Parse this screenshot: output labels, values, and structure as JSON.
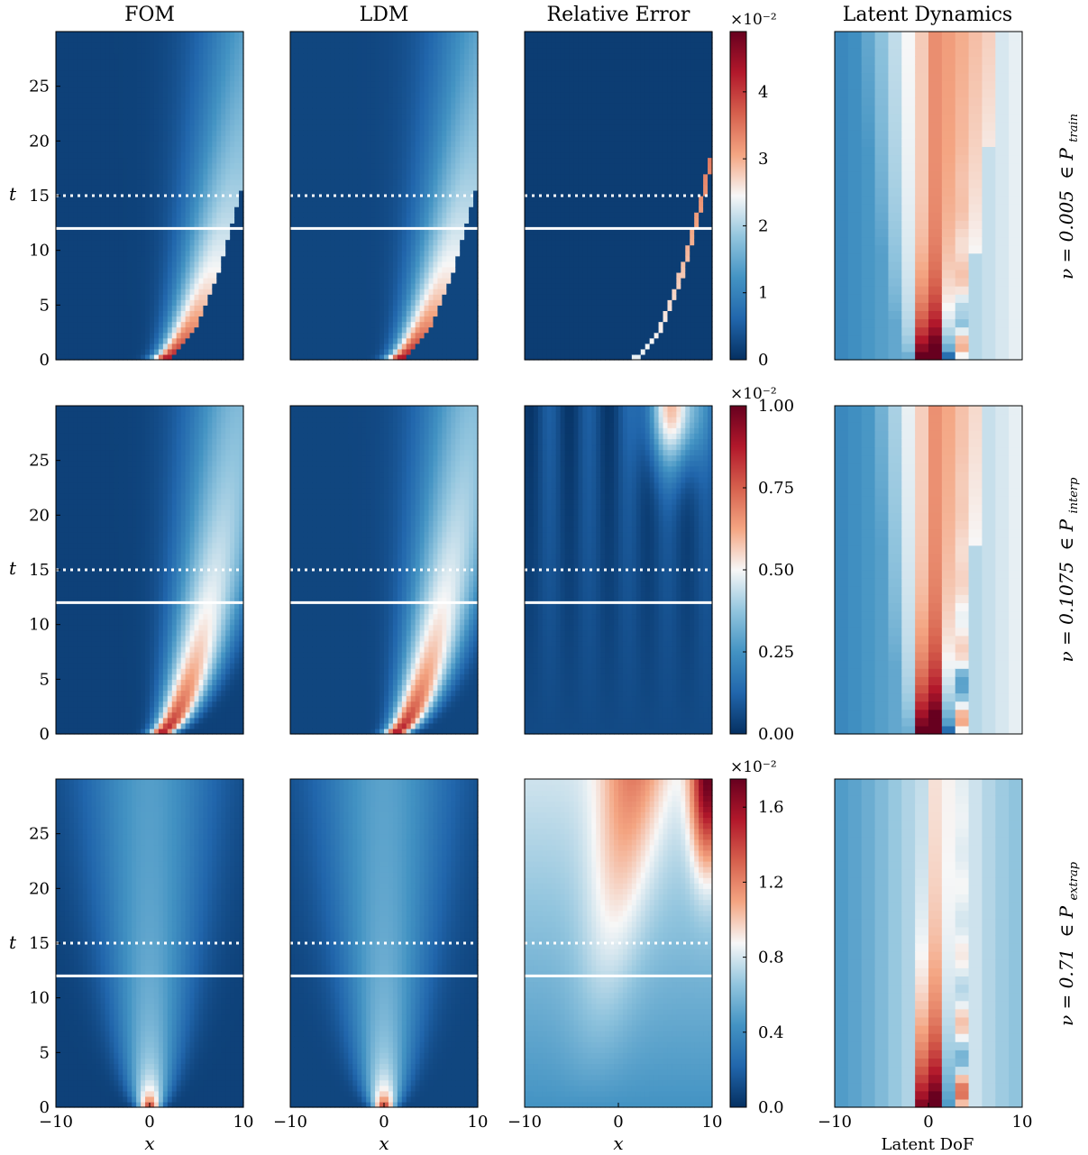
{
  "colormap": [
    "#053061",
    "#2166ac",
    "#4393c3",
    "#92c5de",
    "#f7f7f7",
    "#f4a582",
    "#d6604d",
    "#b2182b",
    "#67001f"
  ],
  "chart_data": {
    "type": "heatmap",
    "column_titles": [
      "FOM",
      "LDM",
      "Relative Error",
      "Latent Dynamics"
    ],
    "xlabel": "x",
    "xlabel_latent": "Latent DoF",
    "ylabel": "t",
    "x_ticks": [
      "−10",
      "0",
      "10"
    ],
    "y_ticks": [
      "0",
      "5",
      "10",
      "15",
      "20",
      "25"
    ],
    "x_range": [
      -10,
      10
    ],
    "t_range": [
      0,
      30
    ],
    "solid_line_t": 12,
    "dotted_line_t": 15,
    "rows": [
      {
        "label_prefix": "ν = 0.005",
        "label_set": "∈ P",
        "label_sub": "train",
        "colorbar": {
          "exponent": "×10⁻²",
          "ticks": [
            "0",
            "1",
            "2",
            "3",
            "4"
          ],
          "tick_values": [
            0,
            1,
            2,
            3,
            4
          ],
          "max": 4.9
        }
      },
      {
        "label_prefix": "ν = 0.1075",
        "label_set": "∈ P",
        "label_sub": "interp",
        "colorbar": {
          "exponent": "×10⁻²",
          "ticks": [
            "0.00",
            "0.25",
            "0.50",
            "0.75",
            "1.00"
          ],
          "tick_values": [
            0,
            0.25,
            0.5,
            0.75,
            1.0
          ],
          "max": 1.0
        }
      },
      {
        "label_prefix": "ν = 0.71",
        "label_set": "∈ P",
        "label_sub": "extrap",
        "colorbar": {
          "exponent": "×10⁻²",
          "ticks": [
            "0.0",
            "0.4",
            "0.8",
            "1.2",
            "1.6"
          ],
          "tick_values": [
            0,
            0.4,
            0.8,
            1.2,
            1.6
          ],
          "max": 1.75
        }
      }
    ]
  }
}
